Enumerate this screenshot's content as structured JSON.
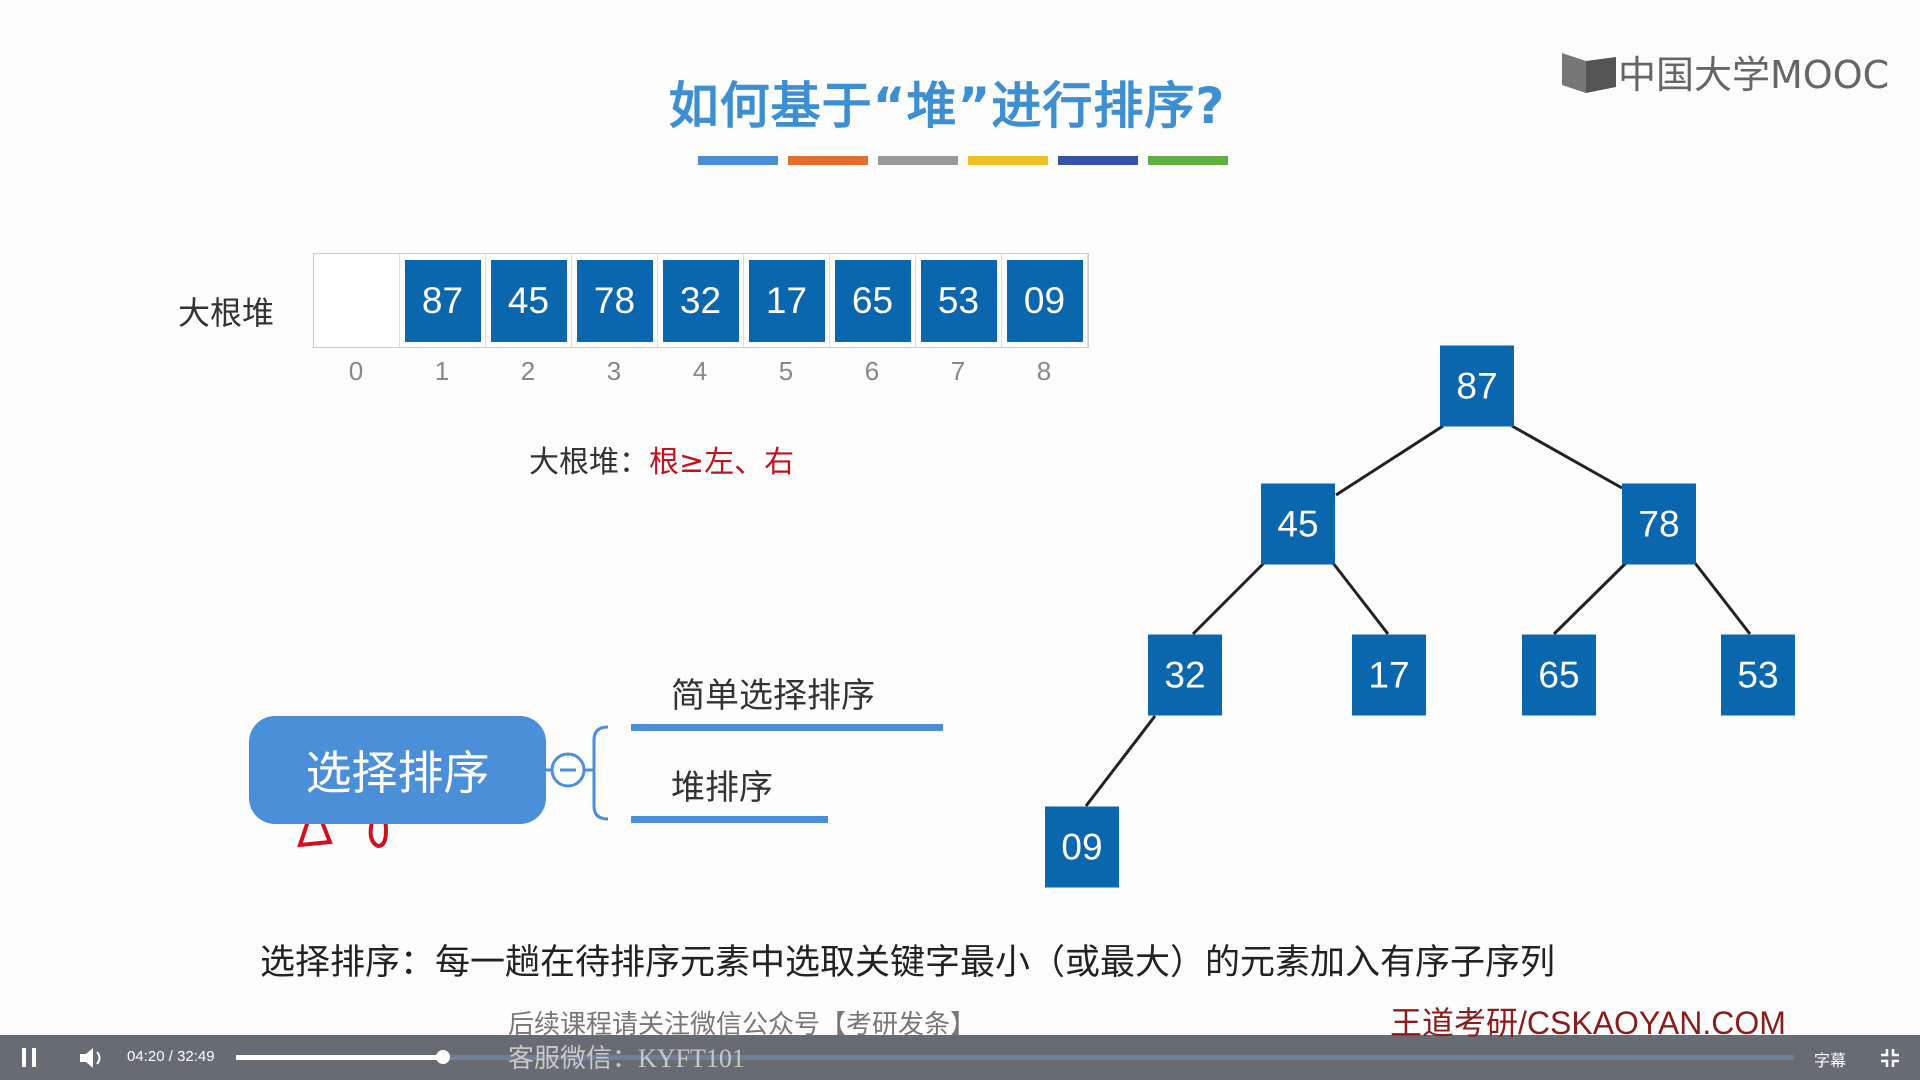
{
  "slide": {
    "title": "如何基于“堆”进行排序?",
    "accent_colors": [
      "#4a8fd0",
      "#e0702c",
      "#9a9a9a",
      "#f0c020",
      "#3553a5",
      "#5fb040"
    ],
    "array_label": "大根堆",
    "array_values": [
      "",
      "87",
      "45",
      "78",
      "32",
      "17",
      "65",
      "53",
      "09"
    ],
    "array_indices": [
      "0",
      "1",
      "2",
      "3",
      "4",
      "5",
      "6",
      "7",
      "8"
    ],
    "rule_prefix": "大根堆：",
    "rule_text": "根≥左、右",
    "tree_nodes": [
      "87",
      "45",
      "78",
      "32",
      "17",
      "65",
      "53",
      "09"
    ],
    "mindmap": {
      "root": "选择排序",
      "children": [
        "简单选择排序",
        "堆排序"
      ]
    },
    "definition": "选择排序：每一趟在待排序元素中选取关键字最小（或最大）的元素加入有序子序列",
    "logo": "中国大学MOOC",
    "watermark_line1": "后续课程请关注微信公众号【考研发条】",
    "watermark_line2": "客服微信：KYFT101",
    "watermark_site": "王道考研/CSKAOYAN.COM"
  },
  "player": {
    "current_time": "04:20",
    "separator": "/",
    "duration": "32:49",
    "progress_percent": 13.3,
    "subtitle_label": "字幕"
  }
}
